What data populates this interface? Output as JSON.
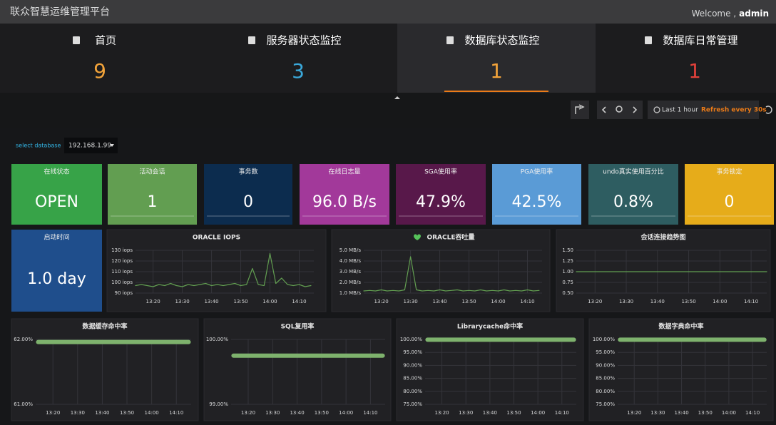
{
  "header": {
    "title": "联众智慧运维管理平台",
    "welcome": "Welcome ,",
    "user": "admin"
  },
  "nav": [
    {
      "label": "首页",
      "count": 9,
      "color": "#f2a33a"
    },
    {
      "label": "服务器状态监控",
      "count": 3,
      "color": "#3aa8da"
    },
    {
      "label": "数据库状态监控",
      "count": 1,
      "color": "#f2a33a"
    },
    {
      "label": "数据库日常管理",
      "count": 1,
      "color": "#e0403a"
    }
  ],
  "toolbar": {
    "range": "Last 1 hour",
    "refresh": "Refresh every 30s"
  },
  "database_select": {
    "label": "select database",
    "value": "192.168.1.99"
  },
  "stats": [
    {
      "title": "在线状态",
      "value": "OPEN",
      "color": "#37a348"
    },
    {
      "title": "活动会话",
      "value": 1,
      "color": "#629e51"
    },
    {
      "title": "事务数",
      "value": 0,
      "color": "#0c2c4e"
    },
    {
      "title": "在线日志量",
      "value": "96.0 B/s",
      "color": "#a2399a"
    },
    {
      "title": "SGA使用率",
      "value": "47.9%",
      "color": "#58184a"
    },
    {
      "title": "PGA使用率",
      "value": "42.5%",
      "color": "#5a9bd6"
    },
    {
      "title": "undo真实使用百分比",
      "value": "0.8%",
      "color": "#2e5d61"
    },
    {
      "title": "事务锁定",
      "value": 0,
      "color": "#e6ac1a"
    },
    {
      "title": "启动时间",
      "value": "1.0 day",
      "color": "#1f4e8c"
    }
  ],
  "chart_data": [
    {
      "type": "line",
      "title": "ORACLE IOPS",
      "grid": true,
      "x": [
        "13:14",
        "13:16",
        "13:18",
        "13:20",
        "13:22",
        "13:24",
        "13:26",
        "13:28",
        "13:30",
        "13:32",
        "13:34",
        "13:36",
        "13:38",
        "13:40",
        "13:42",
        "13:44",
        "13:46",
        "13:48",
        "13:50",
        "13:52",
        "13:54",
        "13:56",
        "13:58",
        "14:00",
        "14:02",
        "14:04",
        "14:06",
        "14:08",
        "14:10",
        "14:12",
        "14:14"
      ],
      "series": [
        {
          "color": "#629e51",
          "values": [
            97,
            98,
            97,
            96,
            98,
            97,
            99,
            97,
            96,
            98,
            97,
            98,
            99,
            97,
            98,
            97,
            98,
            99,
            97,
            98,
            113,
            98,
            97,
            127,
            99,
            104,
            98,
            97,
            98,
            96,
            97
          ]
        }
      ],
      "xlim": [
        "13:14",
        "14:15"
      ],
      "xticks": [
        "13:20",
        "13:30",
        "13:40",
        "13:50",
        "14:00",
        "14:10"
      ],
      "ylim": [
        90,
        130
      ],
      "yticks": [
        {
          "value": 90,
          "label": "90 iops"
        },
        {
          "value": 100,
          "label": "100 iops"
        },
        {
          "value": 110,
          "label": "110 iops"
        },
        {
          "value": 120,
          "label": "120 iops"
        },
        {
          "value": 130,
          "label": "130 iops"
        }
      ]
    },
    {
      "type": "line",
      "title": "ORACLE吞吐量",
      "grid": true,
      "x": [
        "13:14",
        "13:16",
        "13:18",
        "13:20",
        "13:22",
        "13:24",
        "13:26",
        "13:28",
        "13:30",
        "13:32",
        "13:34",
        "13:36",
        "13:38",
        "13:40",
        "13:42",
        "13:44",
        "13:46",
        "13:48",
        "13:50",
        "13:52",
        "13:54",
        "13:56",
        "13:58",
        "14:00",
        "14:02",
        "14:04",
        "14:06",
        "14:08",
        "14:10",
        "14:12",
        "14:14"
      ],
      "series": [
        {
          "color": "#629e51",
          "values": [
            1.2,
            1.25,
            1.2,
            1.3,
            1.2,
            1.25,
            1.2,
            1.3,
            4.4,
            1.3,
            1.2,
            1.25,
            1.2,
            1.3,
            1.2,
            1.25,
            1.3,
            1.2,
            1.25,
            1.2,
            1.3,
            1.2,
            1.25,
            1.2,
            1.3,
            1.2,
            1.25,
            1.2,
            1.3,
            1.2,
            1.25
          ]
        }
      ],
      "xlim": [
        "13:14",
        "14:15"
      ],
      "xticks": [
        "13:20",
        "13:30",
        "13:40",
        "13:50",
        "14:00",
        "14:10"
      ],
      "ylim": [
        1,
        5
      ],
      "yticks": [
        {
          "value": 1,
          "label": "1.0 MB/s"
        },
        {
          "value": 2,
          "label": "2.0 MB/s"
        },
        {
          "value": 3,
          "label": "3.0 MB/s"
        },
        {
          "value": 4,
          "label": "4.0 MB/s"
        },
        {
          "value": 5,
          "label": "5.0 MB/s"
        }
      ]
    },
    {
      "type": "line",
      "title": "会话连接趋势图",
      "grid": true,
      "x": [
        "13:14",
        "14:15"
      ],
      "series": [
        {
          "color": "#629e51",
          "values": [
            1,
            1
          ]
        }
      ],
      "xlim": [
        "13:14",
        "14:15"
      ],
      "xticks": [
        "13:20",
        "13:30",
        "13:40",
        "13:50",
        "14:00",
        "14:10"
      ],
      "ylim": [
        0.5,
        1.5
      ],
      "yticks": [
        {
          "value": 0.5,
          "label": "0.50"
        },
        {
          "value": 0.75,
          "label": "0.75"
        },
        {
          "value": 1,
          "label": "1.00"
        },
        {
          "value": 1.25,
          "label": "1.25"
        },
        {
          "value": 1.5,
          "label": "1.50"
        }
      ]
    },
    {
      "type": "line",
      "title": "数据缓存命中率",
      "grid": true,
      "x": [
        "13:14",
        "14:15"
      ],
      "series": [
        {
          "color": "#7eb26d",
          "values": [
            61.96,
            61.96
          ]
        }
      ],
      "xlim": [
        "13:13",
        "14:16"
      ],
      "xticks": [
        "13:20",
        "13:30",
        "13:40",
        "13:50",
        "14:00",
        "14:10"
      ],
      "ylim": [
        61,
        62
      ],
      "yticks": [
        {
          "value": 61,
          "label": "61.00%"
        },
        {
          "value": 62,
          "label": "62.00%"
        }
      ]
    },
    {
      "type": "line",
      "title": "SQL复用率",
      "grid": true,
      "x": [
        "13:14",
        "14:15"
      ],
      "series": [
        {
          "color": "#7eb26d",
          "values": [
            99.75,
            99.75
          ]
        }
      ],
      "xlim": [
        "13:13",
        "14:16"
      ],
      "xticks": [
        "13:20",
        "13:30",
        "13:40",
        "13:50",
        "14:00",
        "14:10"
      ],
      "ylim": [
        99,
        100
      ],
      "yticks": [
        {
          "value": 99,
          "label": "99.00%"
        },
        {
          "value": 100,
          "label": "100.00%"
        }
      ]
    },
    {
      "type": "line",
      "title": "Librarycache命中率",
      "grid": true,
      "x": [
        "13:14",
        "14:15"
      ],
      "series": [
        {
          "color": "#7eb26d",
          "values": [
            99.9,
            99.9
          ]
        }
      ],
      "xlim": [
        "13:13",
        "14:16"
      ],
      "xticks": [
        "13:20",
        "13:30",
        "13:40",
        "13:50",
        "14:00",
        "14:10"
      ],
      "ylim": [
        75,
        100
      ],
      "yticks": [
        {
          "value": 75,
          "label": "75.00%"
        },
        {
          "value": 80,
          "label": "80.00%"
        },
        {
          "value": 85,
          "label": "85.00%"
        },
        {
          "value": 90,
          "label": "90.00%"
        },
        {
          "value": 95,
          "label": "95.00%"
        },
        {
          "value": 100,
          "label": "100.00%"
        }
      ]
    },
    {
      "type": "line",
      "title": "数据字典命中率",
      "grid": true,
      "x": [
        "13:14",
        "14:15"
      ],
      "series": [
        {
          "color": "#7eb26d",
          "values": [
            99.9,
            99.9
          ]
        }
      ],
      "xlim": [
        "13:13",
        "14:16"
      ],
      "xticks": [
        "13:20",
        "13:30",
        "13:40",
        "13:50",
        "14:00",
        "14:10"
      ],
      "ylim": [
        75,
        100
      ],
      "yticks": [
        {
          "value": 75,
          "label": "75.00%"
        },
        {
          "value": 80,
          "label": "80.00%"
        },
        {
          "value": 85,
          "label": "85.00%"
        },
        {
          "value": 90,
          "label": "90.00%"
        },
        {
          "value": 95,
          "label": "95.00%"
        },
        {
          "value": 100,
          "label": "100.00%"
        }
      ]
    }
  ]
}
